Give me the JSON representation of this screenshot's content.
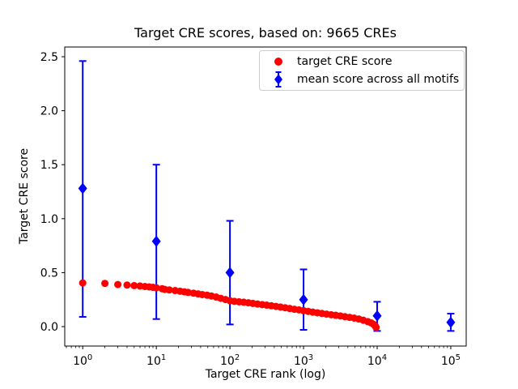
{
  "figure": {
    "title": "Target CRE scores, based on: 9665 CREs",
    "xlabel": "Target CRE rank (log)",
    "ylabel": "Target CRE score",
    "background": "#ffffff",
    "text_color": "#000000"
  },
  "legend": {
    "entries": [
      {
        "label": "target CRE score",
        "marker": "circle",
        "color": "#ff0000"
      },
      {
        "label": "mean score across all motifs",
        "marker": "diamond-errorbar",
        "color": "#0000ff"
      }
    ]
  },
  "chart_data": {
    "type": "scatter",
    "title": "Target CRE scores, based on: 9665 CREs",
    "xlabel": "Target CRE rank (log)",
    "ylabel": "Target CRE score",
    "xscale": "log",
    "grid": false,
    "legend_position": "upper center-right",
    "xlim": [
      0.57,
      162000
    ],
    "ylim": [
      -0.18,
      2.59
    ],
    "yticks": [
      0,
      0.5,
      1,
      1.5,
      2,
      2.5
    ],
    "xticks": [
      {
        "value": 1,
        "base": "10",
        "exp": "0"
      },
      {
        "value": 10,
        "base": "10",
        "exp": "1"
      },
      {
        "value": 100,
        "base": "10",
        "exp": "2"
      },
      {
        "value": 1000,
        "base": "10",
        "exp": "3"
      },
      {
        "value": 10000,
        "base": "10",
        "exp": "4"
      },
      {
        "value": 100000,
        "base": "10",
        "exp": "5"
      }
    ],
    "series": [
      {
        "name": "mean score across all motifs",
        "type": "errorbar-scatter",
        "marker": "diamond",
        "color": "#0000ff",
        "x": [
          1,
          10,
          100,
          1000,
          10000,
          100000
        ],
        "y": [
          1.28,
          0.79,
          0.5,
          0.25,
          0.1,
          0.04
        ],
        "err_top": [
          2.46,
          1.5,
          0.98,
          0.53,
          0.23,
          0.12
        ],
        "err_bottom": [
          0.09,
          0.07,
          0.02,
          -0.03,
          -0.04,
          -0.04
        ]
      },
      {
        "name": "target CRE score",
        "type": "scatter",
        "marker": "circle",
        "color": "#ff0000",
        "points": [
          [
            1,
            0.405
          ],
          [
            2,
            0.4
          ],
          [
            3,
            0.39
          ],
          [
            4,
            0.385
          ],
          [
            5,
            0.38
          ],
          [
            6,
            0.376
          ],
          [
            7,
            0.372
          ],
          [
            8,
            0.368
          ],
          [
            9,
            0.364
          ],
          [
            10,
            0.36
          ],
          [
            12,
            0.351
          ],
          [
            13,
            0.345
          ],
          [
            15,
            0.34
          ],
          [
            18,
            0.334
          ],
          [
            21,
            0.328
          ],
          [
            24,
            0.322
          ],
          [
            27,
            0.317
          ],
          [
            32,
            0.31
          ],
          [
            37,
            0.303
          ],
          [
            42,
            0.297
          ],
          [
            49,
            0.291
          ],
          [
            56,
            0.284
          ],
          [
            65,
            0.274
          ],
          [
            75,
            0.262
          ],
          [
            87,
            0.251
          ],
          [
            100,
            0.24
          ],
          [
            115,
            0.234
          ],
          [
            133,
            0.23
          ],
          [
            154,
            0.226
          ],
          [
            178,
            0.221
          ],
          [
            205,
            0.215
          ],
          [
            237,
            0.209
          ],
          [
            274,
            0.204
          ],
          [
            316,
            0.199
          ],
          [
            365,
            0.193
          ],
          [
            422,
            0.187
          ],
          [
            487,
            0.181
          ],
          [
            562,
            0.175
          ],
          [
            649,
            0.168
          ],
          [
            750,
            0.161
          ],
          [
            866,
            0.155
          ],
          [
            1000,
            0.148
          ],
          [
            1155,
            0.141
          ],
          [
            1334,
            0.134
          ],
          [
            1540,
            0.128
          ],
          [
            1778,
            0.122
          ],
          [
            2054,
            0.116
          ],
          [
            2371,
            0.11
          ],
          [
            2738,
            0.105
          ],
          [
            3162,
            0.099
          ],
          [
            3652,
            0.092
          ],
          [
            4217,
            0.086
          ],
          [
            4870,
            0.079
          ],
          [
            5623,
            0.071
          ],
          [
            6494,
            0.059
          ],
          [
            7499,
            0.046
          ],
          [
            8254,
            0.035
          ],
          [
            8913,
            0.022
          ],
          [
            9330,
            0.01
          ],
          [
            9550,
            0.002
          ],
          [
            9665,
            -0.008
          ]
        ]
      }
    ]
  }
}
